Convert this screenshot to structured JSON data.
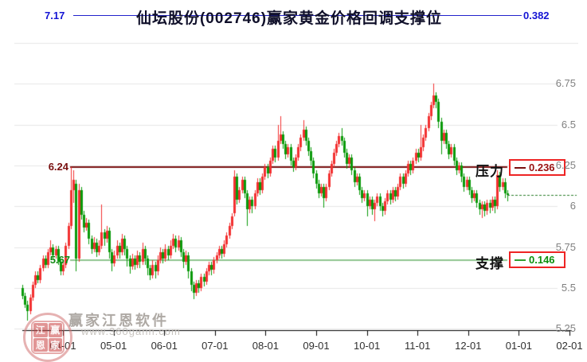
{
  "chart_data": {
    "type": "candlestick",
    "title": "仙坛股份(002746)赢家黄金价格回调支撑位",
    "y_axis": {
      "tick_labels": [
        "6.75",
        "6.5",
        "6.25",
        "6",
        "5.75",
        "5.5",
        "5.25"
      ],
      "tick_prices": [
        6.75,
        6.5,
        6.25,
        6.0,
        5.75,
        5.5,
        5.25
      ],
      "grid_prices": [
        7.0,
        6.75,
        6.5,
        6.25,
        6.0,
        5.75,
        5.5,
        5.25
      ],
      "range": [
        5.25,
        7.0
      ],
      "grid": "on",
      "position": "right"
    },
    "x_axis": {
      "tick_labels": [
        "04-01",
        "05-01",
        "06-01",
        "07-01",
        "08-01",
        "09-01",
        "10-01",
        "11-01",
        "12-01",
        "01-01",
        "02-01"
      ]
    },
    "annotations": {
      "golden_section_top": "7.17",
      "golden_ratio_top": "0.382",
      "resistance": {
        "label": "压力",
        "price": 6.24,
        "price_label": "6.24",
        "ratio_label": "0.236"
      },
      "support": {
        "label": "支撑",
        "price": 5.67,
        "price_label": "5.67",
        "ratio_label": "0.146"
      },
      "last_price_line": {
        "price": 6.07,
        "style": "dashed"
      }
    },
    "candles": [
      [
        5.5,
        5.52,
        5.43,
        5.45
      ],
      [
        5.45,
        5.47,
        5.38,
        5.4
      ],
      [
        5.4,
        5.42,
        5.3,
        5.36
      ],
      [
        5.36,
        5.46,
        5.34,
        5.44
      ],
      [
        5.44,
        5.54,
        5.42,
        5.52
      ],
      [
        5.52,
        5.6,
        5.5,
        5.58
      ],
      [
        5.58,
        5.6,
        5.53,
        5.55
      ],
      [
        5.55,
        5.64,
        5.53,
        5.62
      ],
      [
        5.62,
        5.7,
        5.6,
        5.68
      ],
      [
        5.68,
        5.7,
        5.62,
        5.64
      ],
      [
        5.64,
        5.74,
        5.62,
        5.72
      ],
      [
        5.72,
        5.79,
        5.7,
        5.75
      ],
      [
        5.75,
        5.77,
        5.68,
        5.7
      ],
      [
        5.7,
        5.76,
        5.68,
        5.74
      ],
      [
        5.74,
        5.76,
        5.64,
        5.66
      ],
      [
        5.66,
        5.68,
        5.58,
        5.6
      ],
      [
        5.6,
        5.66,
        5.58,
        5.64
      ],
      [
        5.64,
        5.78,
        5.62,
        5.76
      ],
      [
        5.76,
        5.9,
        5.74,
        5.88
      ],
      [
        5.88,
        6.24,
        5.86,
        6.1
      ],
      [
        6.1,
        6.22,
        6.02,
        6.16
      ],
      [
        6.14,
        6.16,
        5.6,
        5.68
      ],
      [
        5.68,
        6.14,
        5.66,
        6.1
      ],
      [
        6.1,
        6.12,
        5.92,
        5.95
      ],
      [
        5.95,
        5.97,
        5.84,
        5.87
      ],
      [
        5.87,
        5.93,
        5.85,
        5.9
      ],
      [
        5.9,
        5.92,
        5.77,
        5.8
      ],
      [
        5.8,
        5.82,
        5.71,
        5.74
      ],
      [
        5.74,
        5.81,
        5.72,
        5.78
      ],
      [
        5.78,
        5.8,
        5.69,
        5.72
      ],
      [
        5.72,
        5.79,
        5.7,
        5.76
      ],
      [
        5.76,
        6.01,
        5.74,
        5.84
      ],
      [
        5.84,
        5.86,
        5.76,
        5.8
      ],
      [
        5.8,
        5.88,
        5.78,
        5.85
      ],
      [
        5.85,
        5.87,
        5.68,
        5.72
      ],
      [
        5.72,
        5.74,
        5.6,
        5.65
      ],
      [
        5.65,
        5.73,
        5.63,
        5.7
      ],
      [
        5.7,
        5.79,
        5.68,
        5.76
      ],
      [
        5.76,
        5.78,
        5.68,
        5.72
      ],
      [
        5.72,
        5.83,
        5.7,
        5.8
      ],
      [
        5.8,
        5.82,
        5.7,
        5.74
      ],
      [
        5.74,
        5.76,
        5.63,
        5.68
      ],
      [
        5.68,
        5.7,
        5.59,
        5.63
      ],
      [
        5.63,
        5.71,
        5.61,
        5.68
      ],
      [
        5.68,
        5.7,
        5.61,
        5.64
      ],
      [
        5.64,
        5.73,
        5.62,
        5.7
      ],
      [
        5.7,
        5.72,
        5.62,
        5.66
      ],
      [
        5.66,
        5.78,
        5.64,
        5.74
      ],
      [
        5.74,
        5.76,
        5.64,
        5.68
      ],
      [
        5.68,
        5.7,
        5.58,
        5.62
      ],
      [
        5.62,
        5.64,
        5.55,
        5.58
      ],
      [
        5.58,
        5.67,
        5.56,
        5.64
      ],
      [
        5.64,
        5.66,
        5.56,
        5.6
      ],
      [
        5.6,
        5.7,
        5.58,
        5.67
      ],
      [
        5.67,
        5.75,
        5.65,
        5.72
      ],
      [
        5.72,
        5.74,
        5.65,
        5.68
      ],
      [
        5.68,
        5.77,
        5.66,
        5.74
      ],
      [
        5.74,
        5.76,
        5.67,
        5.7
      ],
      [
        5.7,
        5.79,
        5.68,
        5.76
      ],
      [
        5.76,
        5.83,
        5.74,
        5.8
      ],
      [
        5.8,
        5.82,
        5.72,
        5.75
      ],
      [
        5.75,
        5.82,
        5.73,
        5.79
      ],
      [
        5.79,
        5.81,
        5.69,
        5.72
      ],
      [
        5.72,
        5.74,
        5.62,
        5.66
      ],
      [
        5.66,
        5.73,
        5.64,
        5.7
      ],
      [
        5.7,
        5.72,
        5.56,
        5.6
      ],
      [
        5.6,
        5.62,
        5.48,
        5.52
      ],
      [
        5.52,
        5.54,
        5.43,
        5.47
      ],
      [
        5.47,
        5.55,
        5.45,
        5.53
      ],
      [
        5.53,
        5.55,
        5.47,
        5.5
      ],
      [
        5.5,
        5.59,
        5.48,
        5.57
      ],
      [
        5.57,
        5.59,
        5.51,
        5.54
      ],
      [
        5.54,
        5.62,
        5.52,
        5.6
      ],
      [
        5.6,
        5.66,
        5.58,
        5.64
      ],
      [
        5.64,
        5.66,
        5.58,
        5.61
      ],
      [
        5.61,
        5.69,
        5.59,
        5.67
      ],
      [
        5.67,
        5.72,
        5.65,
        5.7
      ],
      [
        5.7,
        5.76,
        5.68,
        5.74
      ],
      [
        5.74,
        5.76,
        5.68,
        5.71
      ],
      [
        5.71,
        5.79,
        5.69,
        5.77
      ],
      [
        5.77,
        5.84,
        5.75,
        5.82
      ],
      [
        5.82,
        5.9,
        5.8,
        5.88
      ],
      [
        5.88,
        5.96,
        5.86,
        5.94
      ],
      [
        5.96,
        6.22,
        5.94,
        6.18
      ],
      [
        6.18,
        6.2,
        6.01,
        6.04
      ],
      [
        6.04,
        6.12,
        6.02,
        6.1
      ],
      [
        6.1,
        6.18,
        6.08,
        6.16
      ],
      [
        6.16,
        6.18,
        6.05,
        6.08
      ],
      [
        6.08,
        6.1,
        5.88,
        5.98
      ],
      [
        5.98,
        6.06,
        5.96,
        6.04
      ],
      [
        6.04,
        6.06,
        5.96,
        6.0
      ],
      [
        6.0,
        6.1,
        5.98,
        6.08
      ],
      [
        6.08,
        6.17,
        6.06,
        6.15
      ],
      [
        6.15,
        6.17,
        6.07,
        6.1
      ],
      [
        6.1,
        6.2,
        6.08,
        6.18
      ],
      [
        6.18,
        6.26,
        6.16,
        6.24
      ],
      [
        6.24,
        6.26,
        6.17,
        6.2
      ],
      [
        6.2,
        6.3,
        6.18,
        6.28
      ],
      [
        6.28,
        6.37,
        6.26,
        6.35
      ],
      [
        6.35,
        6.37,
        6.27,
        6.3
      ],
      [
        6.3,
        6.5,
        6.28,
        6.4
      ],
      [
        6.4,
        6.55,
        6.38,
        6.44
      ],
      [
        6.44,
        6.46,
        6.35,
        6.38
      ],
      [
        6.38,
        6.4,
        6.29,
        6.32
      ],
      [
        6.32,
        6.38,
        6.3,
        6.36
      ],
      [
        6.36,
        6.38,
        6.25,
        6.28
      ],
      [
        6.28,
        6.3,
        6.21,
        6.24
      ],
      [
        6.24,
        6.32,
        6.22,
        6.3
      ],
      [
        6.3,
        6.38,
        6.28,
        6.36
      ],
      [
        6.36,
        6.44,
        6.34,
        6.42
      ],
      [
        6.42,
        6.53,
        6.4,
        6.47
      ],
      [
        6.47,
        6.49,
        6.37,
        6.4
      ],
      [
        6.4,
        6.42,
        6.31,
        6.34
      ],
      [
        6.34,
        6.36,
        6.25,
        6.28
      ],
      [
        6.28,
        6.3,
        6.17,
        6.2
      ],
      [
        6.2,
        6.22,
        6.11,
        6.14
      ],
      [
        6.14,
        6.16,
        6.05,
        6.08
      ],
      [
        6.08,
        6.14,
        6.06,
        6.12
      ],
      [
        6.12,
        6.14,
        5.99,
        6.05
      ],
      [
        6.05,
        6.14,
        6.03,
        6.12
      ],
      [
        6.12,
        6.22,
        6.1,
        6.2
      ],
      [
        6.2,
        6.28,
        6.18,
        6.26
      ],
      [
        6.26,
        6.35,
        6.24,
        6.33
      ],
      [
        6.33,
        6.4,
        6.31,
        6.38
      ],
      [
        6.38,
        6.45,
        6.36,
        6.43
      ],
      [
        6.43,
        6.48,
        6.37,
        6.4
      ],
      [
        6.4,
        6.42,
        6.3,
        6.33
      ],
      [
        6.33,
        6.35,
        6.23,
        6.26
      ],
      [
        6.26,
        6.32,
        6.24,
        6.3
      ],
      [
        6.3,
        6.32,
        6.19,
        6.22
      ],
      [
        6.22,
        6.24,
        6.12,
        6.15
      ],
      [
        6.15,
        6.2,
        6.13,
        6.18
      ],
      [
        6.18,
        6.2,
        6.07,
        6.1
      ],
      [
        6.1,
        6.12,
        6.02,
        6.05
      ],
      [
        6.05,
        6.1,
        6.03,
        6.08
      ],
      [
        6.08,
        6.1,
        5.94,
        6.0
      ],
      [
        6.0,
        6.06,
        5.98,
        6.04
      ],
      [
        6.04,
        6.06,
        5.95,
        5.98
      ],
      [
        5.98,
        6.04,
        5.91,
        6.02
      ],
      [
        6.02,
        6.08,
        6.0,
        6.06
      ],
      [
        6.06,
        6.08,
        5.97,
        6.0
      ],
      [
        6.0,
        6.02,
        5.94,
        5.97
      ],
      [
        5.97,
        6.05,
        5.95,
        6.03
      ],
      [
        6.03,
        6.1,
        6.01,
        6.08
      ],
      [
        6.08,
        6.1,
        6.01,
        6.04
      ],
      [
        6.04,
        6.12,
        6.02,
        6.1
      ],
      [
        6.1,
        6.12,
        6.03,
        6.06
      ],
      [
        6.06,
        6.14,
        6.04,
        6.12
      ],
      [
        6.12,
        6.2,
        6.1,
        6.18
      ],
      [
        6.18,
        6.2,
        6.11,
        6.14
      ],
      [
        6.14,
        6.22,
        6.12,
        6.2
      ],
      [
        6.2,
        6.28,
        6.18,
        6.26
      ],
      [
        6.26,
        6.28,
        6.19,
        6.22
      ],
      [
        6.22,
        6.3,
        6.2,
        6.28
      ],
      [
        6.28,
        6.35,
        6.26,
        6.33
      ],
      [
        6.33,
        6.35,
        6.27,
        6.3
      ],
      [
        6.3,
        6.5,
        6.28,
        6.36
      ],
      [
        6.36,
        6.44,
        6.34,
        6.42
      ],
      [
        6.42,
        6.5,
        6.4,
        6.48
      ],
      [
        6.48,
        6.57,
        6.46,
        6.55
      ],
      [
        6.55,
        6.64,
        6.53,
        6.62
      ],
      [
        6.62,
        6.75,
        6.6,
        6.68
      ],
      [
        6.68,
        6.7,
        6.6,
        6.64
      ],
      [
        6.64,
        6.66,
        6.48,
        6.52
      ],
      [
        6.52,
        6.54,
        6.32,
        6.4
      ],
      [
        6.4,
        6.47,
        6.38,
        6.45
      ],
      [
        6.45,
        6.47,
        6.35,
        6.38
      ],
      [
        6.38,
        6.4,
        6.29,
        6.32
      ],
      [
        6.32,
        6.38,
        6.3,
        6.36
      ],
      [
        6.36,
        6.38,
        6.25,
        6.28
      ],
      [
        6.28,
        6.3,
        6.19,
        6.22
      ],
      [
        6.22,
        6.27,
        6.2,
        6.25
      ],
      [
        6.25,
        6.27,
        6.15,
        6.18
      ],
      [
        6.18,
        6.2,
        6.09,
        6.12
      ],
      [
        6.12,
        6.18,
        6.1,
        6.16
      ],
      [
        6.16,
        6.18,
        6.07,
        6.1
      ],
      [
        6.1,
        6.12,
        6.02,
        6.05
      ],
      [
        6.05,
        6.1,
        6.03,
        6.08
      ],
      [
        6.08,
        6.1,
        5.99,
        6.02
      ],
      [
        6.02,
        6.04,
        5.95,
        5.98
      ],
      [
        5.98,
        6.03,
        5.93,
        6.01
      ],
      [
        6.01,
        6.03,
        5.94,
        5.97
      ],
      [
        5.97,
        6.04,
        5.95,
        6.02
      ],
      [
        6.02,
        6.04,
        5.96,
        5.99
      ],
      [
        5.99,
        6.06,
        5.97,
        6.04
      ],
      [
        6.04,
        6.06,
        5.96,
        6.0
      ],
      [
        6.0,
        6.22,
        5.98,
        6.19
      ],
      [
        6.19,
        6.21,
        6.09,
        6.12
      ],
      [
        6.12,
        6.17,
        6.1,
        6.15
      ],
      [
        6.15,
        6.17,
        6.05,
        6.08
      ],
      [
        6.08,
        6.1,
        6.03,
        6.07
      ]
    ]
  },
  "watermark": {
    "brand": "赢家江恩软件",
    "url": "www.360gann.com",
    "seal_chars": [
      "江",
      "赢",
      "恩",
      "家"
    ]
  },
  "colors": {
    "up": "#f23030",
    "down": "#0a9a0a",
    "resistance_line": "#7a1010",
    "support_line": "#8fc48f",
    "last_price_line": "#2a7e2a",
    "grid": "#e6e6e6",
    "axis": "#000000",
    "title": "#10102a",
    "fib_blue": "#2222cc",
    "value_box_border": "#ee2424",
    "resistance_text": "#991111",
    "support_text": "#0b8f0b"
  }
}
